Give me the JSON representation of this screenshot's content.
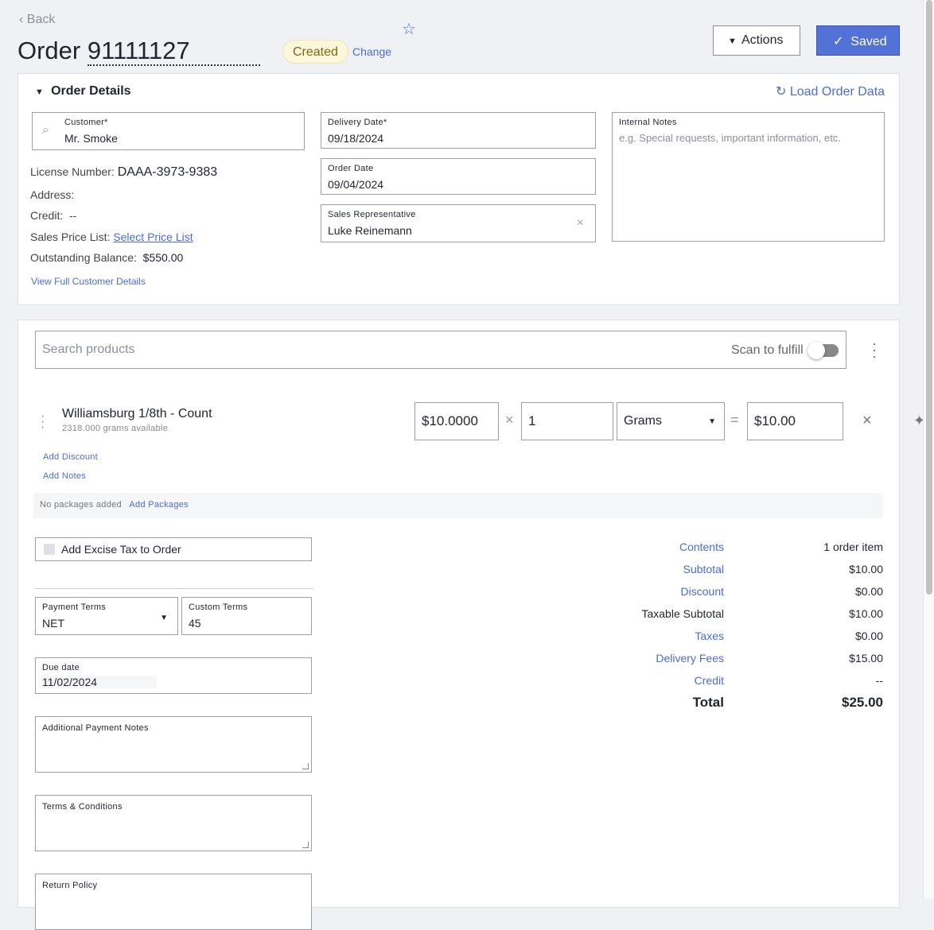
{
  "header": {
    "back": "Back",
    "title_prefix": "Order",
    "order_number": "91111127",
    "status": "Created",
    "change": "Change",
    "actions": "Actions",
    "saved": "Saved"
  },
  "details": {
    "title": "Order Details",
    "load": "Load Order Data",
    "customer": {
      "label": "Customer*",
      "value": "Mr. Smoke"
    },
    "license_label": "License Number:",
    "license": "DAAA-3973-9383",
    "address_label": "Address:",
    "credit_label": "Credit:",
    "credit": "--",
    "price_list_label": "Sales Price List:",
    "price_list": "Select Price List",
    "balance_label": "Outstanding Balance:",
    "balance": "$550.00",
    "view_full": "View Full Customer Details",
    "delivery": {
      "label": "Delivery Date*",
      "value": "09/18/2024"
    },
    "order_date": {
      "label": "Order Date",
      "value": "09/04/2024"
    },
    "rep": {
      "label": "Sales Representative",
      "value": "Luke Reinemann"
    },
    "notes": {
      "label": "Internal Notes",
      "placeholder": "e.g. Special requests, important information, etc."
    }
  },
  "products": {
    "search_placeholder": "Search products",
    "scan": "Scan to fulfill",
    "scan_on": false,
    "item": {
      "name": "Williamsburg 1/8th - Count",
      "available": "2318.000 grams available",
      "price": "$10.0000",
      "qty": "1",
      "unit": "Grams",
      "total": "$10.00"
    },
    "add_discount": "Add Discount",
    "add_notes": "Add Notes",
    "no_packages": "No packages added",
    "add_packages": "Add Packages"
  },
  "payment": {
    "excise": "Add Excise Tax to Order",
    "terms_label": "Payment Terms",
    "terms": "NET",
    "custom_label": "Custom Terms",
    "custom": "45",
    "due_label": "Due date",
    "due": "11/02/2024",
    "additional": "Additional Payment Notes",
    "tc": "Terms & Conditions",
    "return": "Return Policy"
  },
  "summary": [
    {
      "k": "Contents",
      "v": "1 order item",
      "link": true
    },
    {
      "k": "Subtotal",
      "v": "$10.00",
      "link": true
    },
    {
      "k": "Discount",
      "v": "$0.00",
      "link": true
    },
    {
      "k": "Taxable Subtotal",
      "v": "$10.00",
      "link": false
    },
    {
      "k": "Taxes",
      "v": "$0.00",
      "link": true
    },
    {
      "k": "Delivery Fees",
      "v": "$15.00",
      "link": true
    },
    {
      "k": "Credit",
      "v": "--",
      "link": true
    }
  ],
  "total": {
    "k": "Total",
    "v": "$25.00"
  },
  "colors": {
    "accent": "#4a6cd4",
    "status_bg": "#fbf6dc",
    "status_text": "#7a6a10"
  }
}
